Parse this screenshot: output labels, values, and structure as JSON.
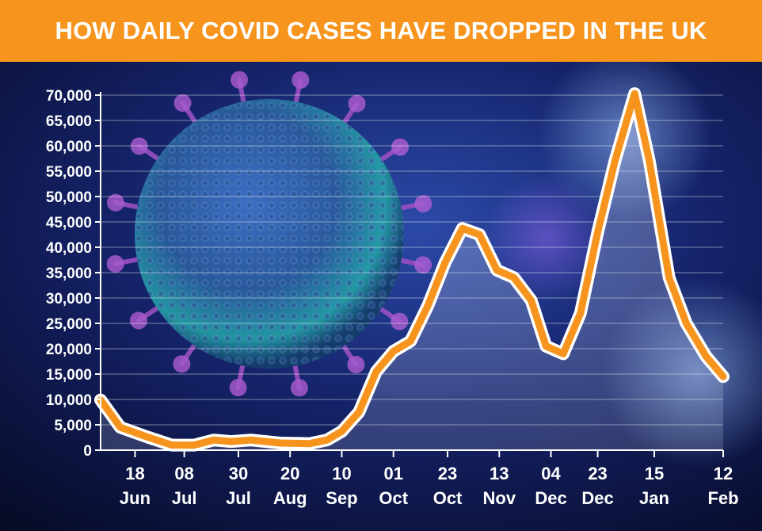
{
  "title": "HOW DAILY COVID CASES HAVE DROPPED IN THE UK",
  "colors": {
    "banner": "#f7941d",
    "line": "#f7941d",
    "line_outline": "#ffffff",
    "text": "#ffffff",
    "background": "#0a0f2e"
  },
  "chart_data": {
    "type": "line",
    "title": "HOW DAILY COVID CASES HAVE DROPPED IN THE UK",
    "xlabel": "",
    "ylabel": "",
    "ylim": [
      0,
      70000
    ],
    "yticks": [
      0,
      5000,
      10000,
      15000,
      20000,
      25000,
      30000,
      35000,
      40000,
      45000,
      50000,
      55000,
      60000,
      65000,
      70000
    ],
    "ytick_labels": [
      "0",
      "5,000",
      "10,000",
      "15,000",
      "20,000",
      "25,000",
      "30,000",
      "35,000",
      "40,000",
      "45,000",
      "50,000",
      "55,000",
      "60,000",
      "65,000",
      "70,000"
    ],
    "xticks": [
      {
        "date": "2020-06-18",
        "day": "18",
        "month": "Jun"
      },
      {
        "date": "2020-07-08",
        "day": "08",
        "month": "Jul"
      },
      {
        "date": "2020-07-30",
        "day": "30",
        "month": "Jul"
      },
      {
        "date": "2020-08-20",
        "day": "20",
        "month": "Aug"
      },
      {
        "date": "2020-09-10",
        "day": "10",
        "month": "Sep"
      },
      {
        "date": "2020-10-01",
        "day": "01",
        "month": "Oct"
      },
      {
        "date": "2020-10-23",
        "day": "23",
        "month": "Oct"
      },
      {
        "date": "2020-11-13",
        "day": "13",
        "month": "Nov"
      },
      {
        "date": "2020-12-04",
        "day": "04",
        "month": "Dec"
      },
      {
        "date": "2020-12-23",
        "day": "23",
        "month": "Dec"
      },
      {
        "date": "2021-01-15",
        "day": "15",
        "month": "Jan"
      },
      {
        "date": "2021-02-12",
        "day": "12",
        "month": "Feb"
      }
    ],
    "grid": true,
    "series": [
      {
        "points": [
          {
            "x": "2020-06-04",
            "y": 9900
          },
          {
            "x": "2020-06-12",
            "y": 4500
          },
          {
            "x": "2020-06-23",
            "y": 2600
          },
          {
            "x": "2020-07-03",
            "y": 1000
          },
          {
            "x": "2020-07-12",
            "y": 1000
          },
          {
            "x": "2020-07-20",
            "y": 2000
          },
          {
            "x": "2020-07-27",
            "y": 1700
          },
          {
            "x": "2020-08-04",
            "y": 2000
          },
          {
            "x": "2020-08-16",
            "y": 1400
          },
          {
            "x": "2020-08-28",
            "y": 1300
          },
          {
            "x": "2020-09-04",
            "y": 2000
          },
          {
            "x": "2020-09-10",
            "y": 3700
          },
          {
            "x": "2020-09-17",
            "y": 7500
          },
          {
            "x": "2020-09-24",
            "y": 15500
          },
          {
            "x": "2020-10-01",
            "y": 19500
          },
          {
            "x": "2020-10-08",
            "y": 21500
          },
          {
            "x": "2020-10-15",
            "y": 28500
          },
          {
            "x": "2020-10-22",
            "y": 37000
          },
          {
            "x": "2020-10-29",
            "y": 43700
          },
          {
            "x": "2020-11-05",
            "y": 42500
          },
          {
            "x": "2020-11-12",
            "y": 35500
          },
          {
            "x": "2020-11-19",
            "y": 34000
          },
          {
            "x": "2020-11-26",
            "y": 29500
          },
          {
            "x": "2020-12-02",
            "y": 20500
          },
          {
            "x": "2020-12-09",
            "y": 19000
          },
          {
            "x": "2020-12-16",
            "y": 27000
          },
          {
            "x": "2020-12-23",
            "y": 43000
          },
          {
            "x": "2020-12-30",
            "y": 57000
          },
          {
            "x": "2021-01-07",
            "y": 70300
          },
          {
            "x": "2021-01-13",
            "y": 57000
          },
          {
            "x": "2021-01-21",
            "y": 34000
          },
          {
            "x": "2021-01-28",
            "y": 25000
          },
          {
            "x": "2021-02-05",
            "y": 18500
          },
          {
            "x": "2021-02-12",
            "y": 14500
          }
        ]
      }
    ]
  }
}
